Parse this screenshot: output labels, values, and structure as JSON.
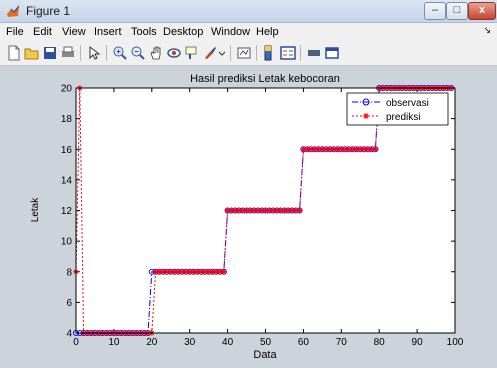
{
  "window": {
    "title": "Figure 1",
    "controls": {
      "minimize": "–",
      "maximize": "□",
      "close": "x"
    }
  },
  "menu": {
    "items": [
      "File",
      "Edit",
      "View",
      "Insert",
      "Tools",
      "Desktop",
      "Window",
      "Help"
    ]
  },
  "toolbar": {
    "icons": [
      "new-figure-icon",
      "open-file-icon",
      "save-icon",
      "print-icon",
      "pointer-icon",
      "zoom-in-icon",
      "zoom-out-icon",
      "pan-icon",
      "rotate-3d-icon",
      "data-cursor-icon",
      "brush-icon",
      "link-plot-icon",
      "colorbar-icon",
      "legend-icon",
      "hide-plot-tools-icon",
      "show-plot-tools-icon"
    ]
  },
  "chart_data": {
    "type": "line",
    "title": "Hasil prediksi Letak kebocoran",
    "xlabel": "Data",
    "ylabel": "Letak",
    "xlim": [
      0,
      100
    ],
    "ylim": [
      4,
      20
    ],
    "xticks": [
      0,
      10,
      20,
      30,
      40,
      50,
      60,
      70,
      80,
      90,
      100
    ],
    "yticks": [
      4,
      6,
      8,
      10,
      12,
      14,
      16,
      18,
      20
    ],
    "grid": false,
    "legend_position": "top-right",
    "series": [
      {
        "name": "observasi",
        "color": "#0000ff",
        "line": "dash-dot",
        "marker": "circle",
        "x": [
          0,
          1,
          2,
          3,
          4,
          5,
          6,
          7,
          8,
          9,
          10,
          11,
          12,
          13,
          14,
          15,
          16,
          17,
          18,
          19,
          20,
          21,
          22,
          23,
          24,
          25,
          26,
          27,
          28,
          29,
          30,
          31,
          32,
          33,
          34,
          35,
          36,
          37,
          38,
          39,
          40,
          41,
          42,
          43,
          44,
          45,
          46,
          47,
          48,
          49,
          50,
          51,
          52,
          53,
          54,
          55,
          56,
          57,
          58,
          59,
          60,
          61,
          62,
          63,
          64,
          65,
          66,
          67,
          68,
          69,
          70,
          71,
          72,
          73,
          74,
          75,
          76,
          77,
          78,
          79,
          80,
          81,
          82,
          83,
          84,
          85,
          86,
          87,
          88,
          89,
          90,
          91,
          92,
          93,
          94,
          95,
          96,
          97,
          98,
          99
        ],
        "y": [
          4,
          4,
          4,
          4,
          4,
          4,
          4,
          4,
          4,
          4,
          4,
          4,
          4,
          4,
          4,
          4,
          4,
          4,
          4,
          4,
          8,
          8,
          8,
          8,
          8,
          8,
          8,
          8,
          8,
          8,
          8,
          8,
          8,
          8,
          8,
          8,
          8,
          8,
          8,
          8,
          12,
          12,
          12,
          12,
          12,
          12,
          12,
          12,
          12,
          12,
          12,
          12,
          12,
          12,
          12,
          12,
          12,
          12,
          12,
          12,
          16,
          16,
          16,
          16,
          16,
          16,
          16,
          16,
          16,
          16,
          16,
          16,
          16,
          16,
          16,
          16,
          16,
          16,
          16,
          16,
          20,
          20,
          20,
          20,
          20,
          20,
          20,
          20,
          20,
          20,
          20,
          20,
          20,
          20,
          20,
          20,
          20,
          20,
          20,
          20
        ]
      },
      {
        "name": "prediksi",
        "color": "#ff0000",
        "line": "dotted",
        "marker": "star",
        "x": [
          0,
          1,
          2,
          3,
          4,
          5,
          6,
          7,
          8,
          9,
          10,
          11,
          12,
          13,
          14,
          15,
          16,
          17,
          18,
          19,
          20,
          21,
          22,
          23,
          24,
          25,
          26,
          27,
          28,
          29,
          30,
          31,
          32,
          33,
          34,
          35,
          36,
          37,
          38,
          39,
          40,
          41,
          42,
          43,
          44,
          45,
          46,
          47,
          48,
          49,
          50,
          51,
          52,
          53,
          54,
          55,
          56,
          57,
          58,
          59,
          60,
          61,
          62,
          63,
          64,
          65,
          66,
          67,
          68,
          69,
          70,
          71,
          72,
          73,
          74,
          75,
          76,
          77,
          78,
          79,
          80,
          81,
          82,
          83,
          84,
          85,
          86,
          87,
          88,
          89,
          90,
          91,
          92,
          93,
          94,
          95,
          96,
          97,
          98,
          99
        ],
        "y": [
          8,
          20,
          4,
          4,
          4,
          4,
          4,
          4,
          4,
          4,
          4,
          4,
          4,
          4,
          4,
          4,
          4,
          4,
          4,
          4,
          4,
          8,
          8,
          8,
          8,
          8,
          8,
          8,
          8,
          8,
          8,
          8,
          8,
          8,
          8,
          8,
          8,
          8,
          8,
          8,
          12,
          12,
          12,
          12,
          12,
          12,
          12,
          12,
          12,
          12,
          12,
          12,
          12,
          12,
          12,
          12,
          12,
          12,
          12,
          12,
          16,
          16,
          16,
          16,
          16,
          16,
          16,
          16,
          16,
          16,
          16,
          16,
          16,
          16,
          16,
          16,
          16,
          16,
          16,
          16,
          20,
          20,
          20,
          20,
          20,
          20,
          20,
          20,
          20,
          20,
          20,
          20,
          20,
          20,
          20,
          20,
          20,
          20,
          20,
          20
        ]
      }
    ]
  }
}
